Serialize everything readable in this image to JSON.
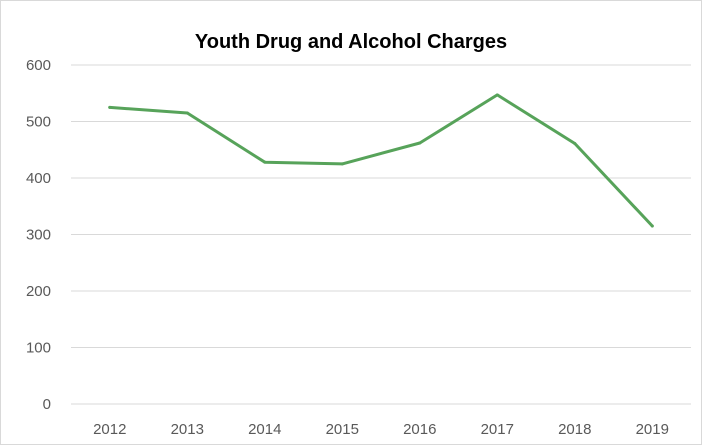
{
  "chart_data": {
    "type": "line",
    "title": "Youth Drug and Alcohol Charges",
    "xlabel": "",
    "ylabel": "",
    "x": [
      "2012",
      "2013",
      "2014",
      "2015",
      "2016",
      "2017",
      "2018",
      "2019"
    ],
    "series": [
      {
        "values": [
          525,
          515,
          428,
          425,
          462,
          547,
          461,
          315
        ]
      }
    ],
    "ylim": [
      0,
      600
    ],
    "yticks": [
      0,
      100,
      200,
      300,
      400,
      500,
      600
    ],
    "grid": true,
    "legend": "none",
    "colors": {
      "line": "#57a35a",
      "grid": "#d9d9d9",
      "text": "#595959"
    }
  }
}
